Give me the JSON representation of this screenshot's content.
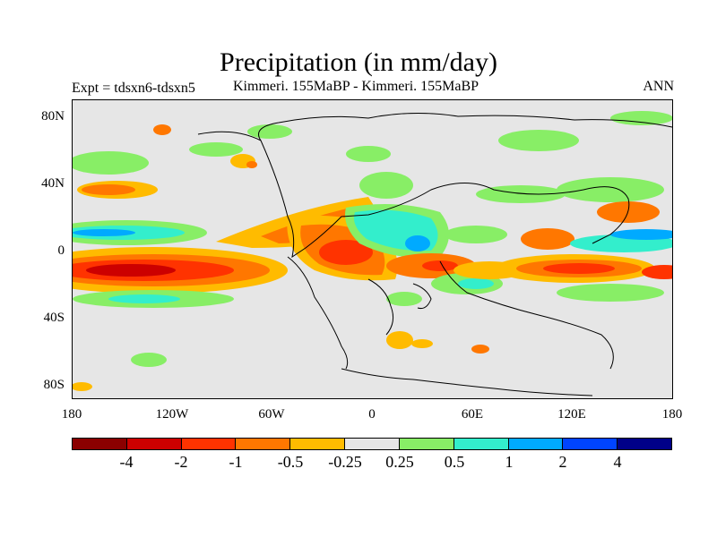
{
  "figure": {
    "title": "Precipitation (in mm/day)",
    "expt_label": "Expt = tdsxn6-tdsxn5",
    "comparison_label": "Kimmeri. 155MaBP - Kimmeri. 155MaBP",
    "season": "ANN"
  },
  "map": {
    "background_color": "#e6e6e6",
    "lat_ticks": [
      "80N",
      "40N",
      "0",
      "40S",
      "80S"
    ],
    "lon_ticks": [
      "180",
      "120W",
      "60W",
      "0",
      "60E",
      "120E",
      "180"
    ]
  },
  "colorbar": {
    "colors": [
      "#8b0000",
      "#cc0000",
      "#ff3300",
      "#ff7700",
      "#ffbb00",
      "#e6e6e6",
      "#88ee66",
      "#33eecc",
      "#00aaff",
      "#0044ff",
      "#000088"
    ],
    "labels": [
      "-4",
      "-2",
      "-1",
      "-0.5",
      "-0.25",
      "0.25",
      "0.5",
      "1",
      "2",
      "4"
    ]
  }
}
